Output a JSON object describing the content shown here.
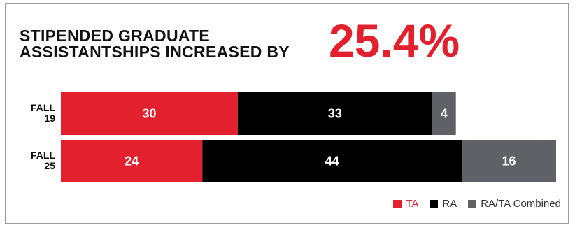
{
  "headline": {
    "line1": "STIPENDED GRADUATE",
    "line2": "ASSISTANTSHIPS INCREASED BY",
    "value": "25.4%"
  },
  "chart_data": {
    "type": "bar",
    "orientation": "horizontal",
    "stacked": true,
    "categories": [
      {
        "line1": "FALL",
        "line2": "19"
      },
      {
        "line1": "FALL",
        "line2": "25"
      }
    ],
    "series": [
      {
        "name": "TA",
        "color": "#e3202e",
        "values": [
          30,
          24
        ]
      },
      {
        "name": "RA",
        "color": "#000000",
        "values": [
          33,
          44
        ]
      },
      {
        "name": "RA/TA Combined",
        "color": "#5f6166",
        "values": [
          4,
          16
        ]
      }
    ],
    "xlim": [
      0,
      84
    ],
    "grid": false,
    "legend_position": "bottom-right"
  }
}
